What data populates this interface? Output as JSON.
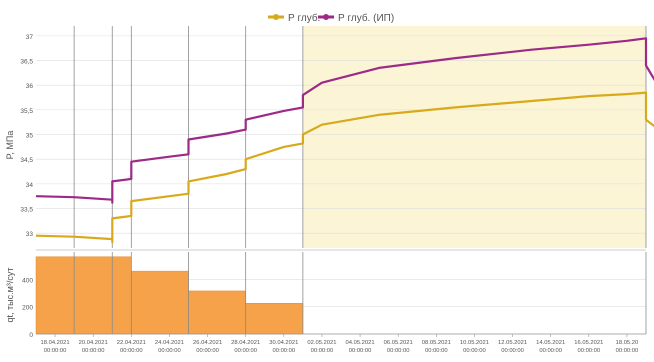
{
  "colors": {
    "p_glub": "#d9a91c",
    "p_glub_ip": "#9c2a86",
    "rate_bar": "#f5a24a",
    "rate_bar_edge": "#e58a2a",
    "shade": "#fbf5d6",
    "grid": "#dddddd",
    "axis_text": "#555555"
  },
  "chart_data": [
    {
      "type": "line",
      "ylabel": "P, МПа",
      "ylim": [
        32.7,
        37.2
      ],
      "y_ticks": [
        "33",
        "33,5",
        "34",
        "34,5",
        "35",
        "35,5",
        "36",
        "36,5",
        "37"
      ],
      "x_range": [
        "2021-04-17",
        "2021-05-19"
      ],
      "legend": {
        "position": "top-center",
        "items": [
          "Р глуб.",
          "Р глуб. (ИП)"
        ]
      },
      "shaded_interval": [
        "2021-05-01",
        "2021-05-19"
      ],
      "event_lines": [
        "2021-04-19",
        "2021-04-21",
        "2021-04-22",
        "2021-04-25",
        "2021-04-28",
        "2021-05-01",
        "2021-05-19"
      ],
      "series": [
        {
          "name": "Р глуб.",
          "x": [
            "2021-04-17",
            "2021-04-19",
            "2021-04-21",
            "2021-04-21",
            "2021-04-21",
            "2021-04-22",
            "2021-04-22",
            "2021-04-22",
            "2021-04-24",
            "2021-04-25",
            "2021-04-25",
            "2021-04-27",
            "2021-04-28",
            "2021-04-28",
            "2021-04-30",
            "2021-05-01",
            "2021-05-01",
            "2021-05-02",
            "2021-05-05",
            "2021-05-09",
            "2021-05-13",
            "2021-05-16",
            "2021-05-18",
            "2021-05-19",
            "2021-05-19",
            "2021-05-20"
          ],
          "y": [
            32.95,
            32.93,
            32.88,
            32.82,
            33.3,
            33.35,
            33.5,
            33.65,
            33.75,
            33.8,
            34.05,
            34.2,
            34.3,
            34.5,
            34.75,
            34.82,
            35.0,
            35.2,
            35.4,
            35.55,
            35.68,
            35.78,
            35.82,
            35.85,
            35.3,
            35.0
          ]
        },
        {
          "name": "Р глуб. (ИП)",
          "x": [
            "2021-04-17",
            "2021-04-19",
            "2021-04-21",
            "2021-04-21",
            "2021-04-21",
            "2021-04-22",
            "2021-04-22",
            "2021-04-22",
            "2021-04-24",
            "2021-04-25",
            "2021-04-25",
            "2021-04-27",
            "2021-04-28",
            "2021-04-28",
            "2021-04-30",
            "2021-05-01",
            "2021-05-01",
            "2021-05-02",
            "2021-05-05",
            "2021-05-09",
            "2021-05-13",
            "2021-05-16",
            "2021-05-18",
            "2021-05-19",
            "2021-05-19",
            "2021-05-20"
          ],
          "y": [
            33.75,
            33.73,
            33.68,
            33.62,
            34.05,
            34.1,
            34.3,
            34.45,
            34.55,
            34.6,
            34.9,
            35.02,
            35.1,
            35.3,
            35.48,
            35.55,
            35.8,
            36.05,
            36.35,
            36.55,
            36.72,
            36.82,
            36.9,
            36.95,
            36.4,
            35.75
          ]
        }
      ]
    },
    {
      "type": "bar",
      "ylabel": "qt, тыс.м³/сут",
      "ylim": [
        0,
        600
      ],
      "y_ticks": [
        "0",
        "200",
        "400"
      ],
      "grid": true,
      "x_tick_labels": [
        [
          "18.04.2021",
          "00:00:00"
        ],
        [
          "20.04.2021",
          "00:00:00"
        ],
        [
          "22.04.2021",
          "00:00:00"
        ],
        [
          "24.04.2021",
          "00:00:00"
        ],
        [
          "26.04.2021",
          "00:00:00"
        ],
        [
          "28.04.2021",
          "00:00:00"
        ],
        [
          "30.04.2021",
          "00:00:00"
        ],
        [
          "02.05.2021",
          "00:00:00"
        ],
        [
          "04.05.2021",
          "00:00:00"
        ],
        [
          "06.05.2021",
          "00:00:00"
        ],
        [
          "08.05.2021",
          "00:00:00"
        ],
        [
          "10.05.2021",
          "00:00:00"
        ],
        [
          "12.05.2021",
          "00:00:00"
        ],
        [
          "14.05.2021",
          "00:00:00"
        ],
        [
          "16.05.2021",
          "00:00:00"
        ],
        [
          "18.05.20",
          "00:00:00"
        ]
      ],
      "x_tick_dates": [
        "2021-04-18",
        "2021-04-20",
        "2021-04-22",
        "2021-04-24",
        "2021-04-26",
        "2021-04-28",
        "2021-04-30",
        "2021-05-02",
        "2021-05-04",
        "2021-05-06",
        "2021-05-08",
        "2021-05-10",
        "2021-05-12",
        "2021-05-14",
        "2021-05-16",
        "2021-05-18"
      ],
      "bars": [
        {
          "start": "2021-04-17",
          "end": "2021-04-21",
          "value": 565
        },
        {
          "start": "2021-04-21",
          "end": "2021-04-22",
          "value": 565
        },
        {
          "start": "2021-04-22",
          "end": "2021-04-25",
          "value": 460
        },
        {
          "start": "2021-04-25",
          "end": "2021-04-28",
          "value": 315
        },
        {
          "start": "2021-04-28",
          "end": "2021-05-01",
          "value": 225
        }
      ]
    }
  ]
}
